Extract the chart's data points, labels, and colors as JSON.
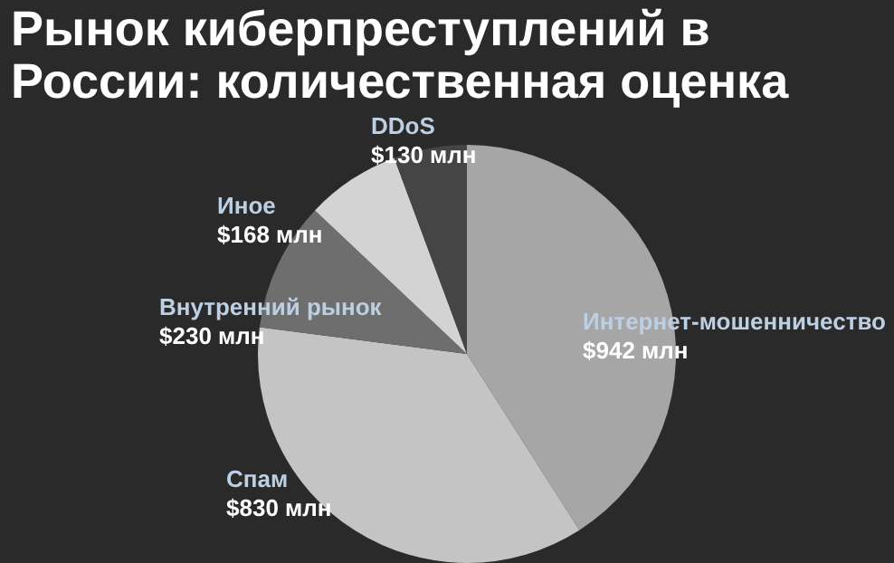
{
  "chart_data": {
    "type": "pie",
    "title": "Рынок киберпреступлений в России: количественная оценка",
    "categories": [
      "Интернет-мошенничество",
      "Спам",
      "Внутренний рынок",
      "Иное",
      "DDoS"
    ],
    "values": [
      942,
      830,
      230,
      168,
      130
    ],
    "colors": [
      "#a6a6a6",
      "#c4c4c4",
      "#6e6e6e",
      "#d3d3d3",
      "#454545"
    ],
    "value_labels": [
      "$942 млн",
      "$830 млн",
      "$230 млн",
      "$168 млн",
      "$130 млн"
    ],
    "legend": false
  }
}
